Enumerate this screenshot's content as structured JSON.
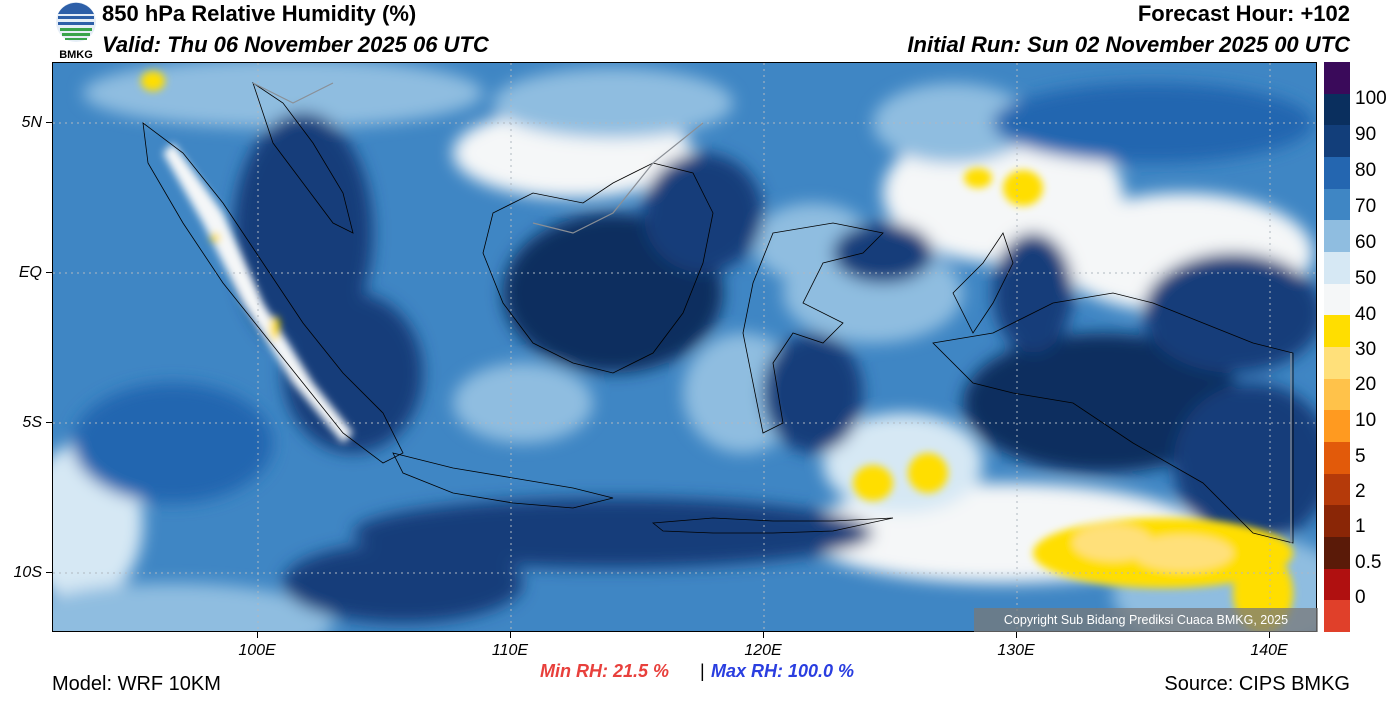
{
  "header": {
    "title": "850 hPa Relative Humidity (%)",
    "valid": "Valid: Thu 06 November 2025 06 UTC",
    "forecast_hour": "Forecast Hour: +102",
    "initial_run": "Initial Run: Sun 02 November 2025 00 UTC",
    "logo_text": "BMKG"
  },
  "map": {
    "lat_labels": [
      "5N",
      "EQ",
      "5S",
      "10S"
    ],
    "lon_labels": [
      "100E",
      "110E",
      "120E",
      "130E",
      "140E"
    ],
    "copyright": "Copyright Sub Bidang Prediksi Cuaca BMKG, 2025"
  },
  "colorbar": {
    "labels": [
      "100",
      "90",
      "80",
      "70",
      "60",
      "50",
      "40",
      "30",
      "20",
      "10",
      "5",
      "2",
      "1",
      "0.5",
      "0"
    ],
    "colors": [
      "#3a0a5a",
      "#0a2f5e",
      "#123e7a",
      "#2466b0",
      "#3f86c4",
      "#8fbde0",
      "#d6e8f4",
      "#f5f7f8",
      "#ffde00",
      "#ffe07a",
      "#ffc24a",
      "#ff9a20",
      "#e25a0a",
      "#b53a0a",
      "#8a2606",
      "#5a1a08",
      "#b01010",
      "#e0402a"
    ]
  },
  "stats": {
    "min_rh": "Min RH:  21.5 %",
    "separator": "|",
    "max_rh": "Max RH: 100.0 %",
    "min_color": "#e8403c",
    "max_color": "#2a3ee0"
  },
  "footer": {
    "model": "Model: WRF 10KM",
    "source": "Source: CIPS BMKG"
  }
}
